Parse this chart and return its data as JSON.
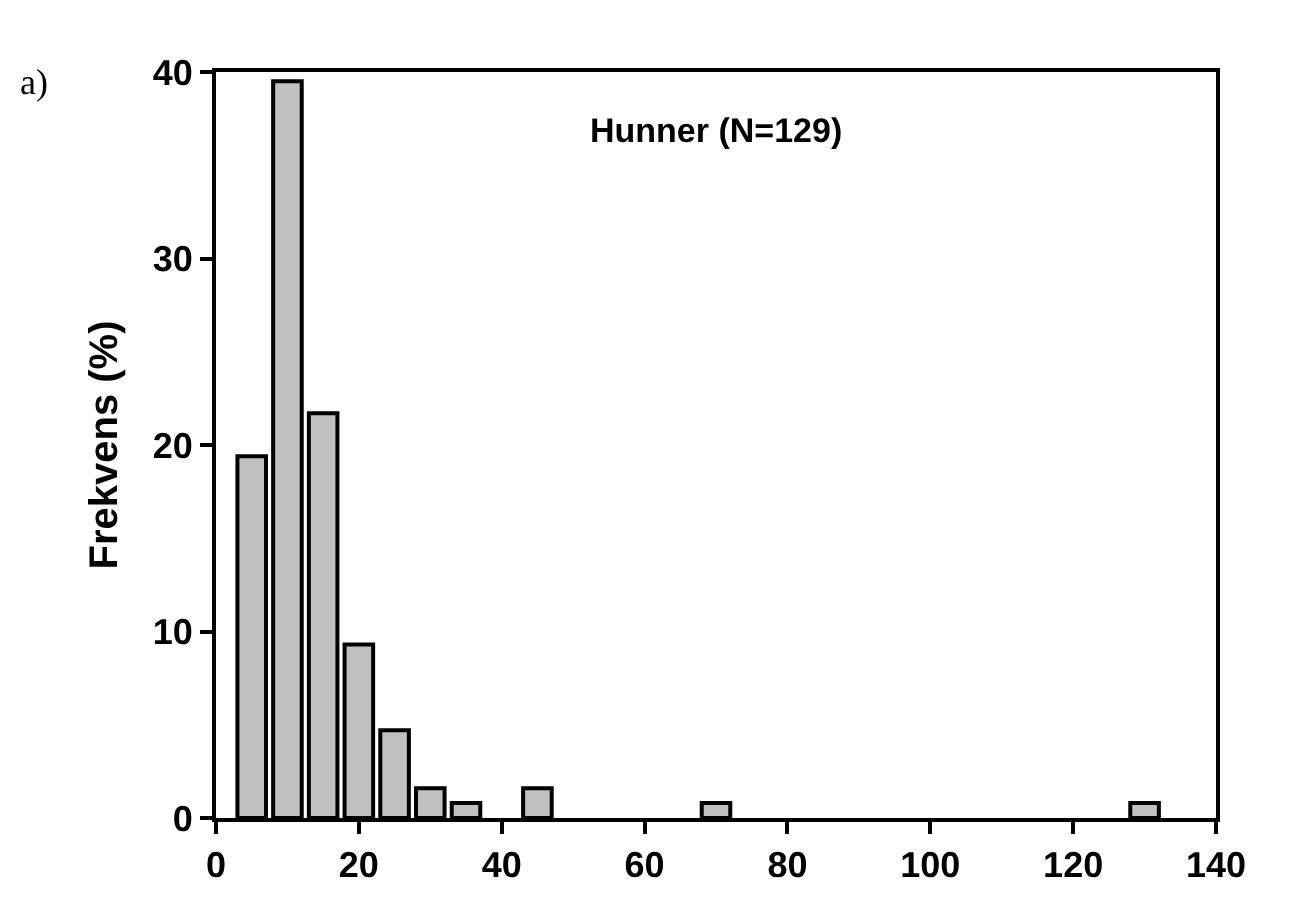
{
  "chart_data": {
    "type": "bar",
    "title": "Hunner (N=129)",
    "ylabel": "Frekvens (%)",
    "annotations": [
      "a)"
    ],
    "x": [
      5,
      10,
      15,
      20,
      25,
      30,
      35,
      45,
      70,
      130
    ],
    "values": [
      19.4,
      39.5,
      21.7,
      9.3,
      4.7,
      1.6,
      0.8,
      1.6,
      0.8,
      0.8
    ],
    "color": "#c0c0c0",
    "xlim": [
      0,
      140
    ],
    "xticks": [
      0,
      20,
      40,
      60,
      80,
      100,
      120,
      140
    ],
    "ylim": [
      0,
      40
    ],
    "yticks": [
      0,
      10,
      20,
      30,
      40
    ]
  }
}
